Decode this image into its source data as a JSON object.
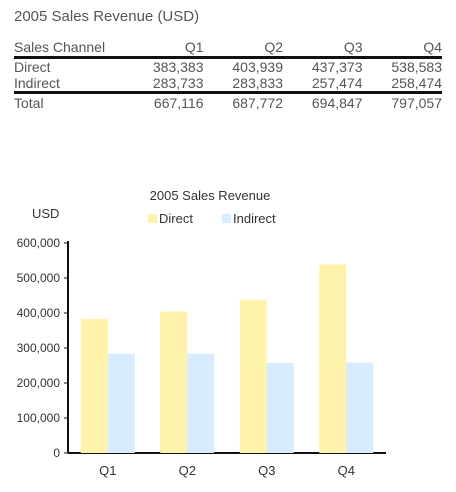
{
  "table": {
    "title": "2005 Sales Revenue (USD)",
    "columns": [
      "Sales Channel",
      "Q1",
      "Q2",
      "Q3",
      "Q4"
    ],
    "rows": [
      {
        "channel": "Direct",
        "values": [
          "383,383",
          "403,939",
          "437,373",
          "538,583"
        ]
      },
      {
        "channel": "Indirect",
        "values": [
          "283,733",
          "283,833",
          "257,474",
          "258,474"
        ]
      }
    ],
    "total": {
      "label": "Total",
      "values": [
        "667,116",
        "687,772",
        "694,847",
        "797,057"
      ]
    }
  },
  "chart_data": {
    "type": "bar",
    "title": "2005 Sales Revenue",
    "ylabel": "USD",
    "xlabel": "",
    "categories": [
      "Q1",
      "Q2",
      "Q3",
      "Q4"
    ],
    "series": [
      {
        "name": "Direct",
        "color": "#fff2aa",
        "values": [
          383383,
          403939,
          437373,
          538583
        ]
      },
      {
        "name": "Indirect",
        "color": "#d9ebff",
        "values": [
          283733,
          283833,
          257474,
          258474
        ]
      }
    ],
    "ylim": [
      0,
      600000
    ],
    "yticks": [
      0,
      100000,
      200000,
      300000,
      400000,
      500000,
      600000
    ],
    "ytick_labels": [
      "0",
      "100,000",
      "200,000",
      "300,000",
      "400,000",
      "500,000",
      "600,000"
    ],
    "grid": false,
    "legend_position": "top-center"
  }
}
